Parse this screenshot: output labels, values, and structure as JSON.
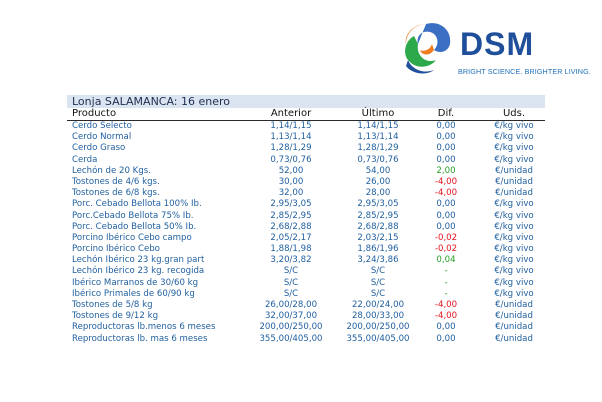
{
  "logo": {
    "name": "DSM",
    "tagline": "BRIGHT SCIENCE. BRIGHTER LIVING.",
    "colors": [
      "#3a6fc4",
      "#2da84a",
      "#f07c1f",
      "#1f4e9a"
    ]
  },
  "table": {
    "title": "Lonja SALAMANCA: 16 enero",
    "columns": {
      "producto": "Producto",
      "anterior": "Anterior",
      "ultimo": "Último",
      "dif": "Dif.",
      "uds": "Uds."
    },
    "colors": {
      "text": "#1f5f9f",
      "positive": "#2aa02a",
      "negative": "#e0141e",
      "title_bg": "#dbe5f1"
    },
    "rows": [
      {
        "producto": "Cerdo Selecto",
        "anterior": "1,14/1,15",
        "ultimo": "1,14/1,15",
        "dif": "0,00",
        "uds": "€/kg vivo",
        "trend": "zero"
      },
      {
        "producto": "Cerdo Normal",
        "anterior": "1,13/1,14",
        "ultimo": "1,13/1,14",
        "dif": "0,00",
        "uds": "€/kg vivo",
        "trend": "zero"
      },
      {
        "producto": "Cerdo Graso",
        "anterior": "1,28/1,29",
        "ultimo": "1,28/1,29",
        "dif": "0,00",
        "uds": "€/kg vivo",
        "trend": "zero"
      },
      {
        "producto": "Cerda",
        "anterior": "0,73/0,76",
        "ultimo": "0,73/0,76",
        "dif": "0,00",
        "uds": "€/kg vivo",
        "trend": "zero"
      },
      {
        "producto": "Lechón de 20 Kgs.",
        "anterior": "52,00",
        "ultimo": "54,00",
        "dif": "2,00",
        "uds": "€/unidad",
        "trend": "pos"
      },
      {
        "producto": "Tostones de 4/6 kgs.",
        "anterior": "30,00",
        "ultimo": "26,00",
        "dif": "-4,00",
        "uds": "€/unidad",
        "trend": "neg"
      },
      {
        "producto": "Tostones de 6/8 kgs.",
        "anterior": "32,00",
        "ultimo": "28,00",
        "dif": "-4,00",
        "uds": "€/unidad",
        "trend": "neg"
      },
      {
        "producto": "Porc. Cebado Bellota 100% Ib.",
        "anterior": "2,95/3,05",
        "ultimo": "2,95/3,05",
        "dif": "0,00",
        "uds": "€/kg vivo",
        "trend": "zero"
      },
      {
        "producto": "Porc.Cebado Bellota 75% Ib.",
        "anterior": "2,85/2,95",
        "ultimo": "2,85/2,95",
        "dif": "0,00",
        "uds": "€/kg vivo",
        "trend": "zero"
      },
      {
        "producto": "Porc. Cebado Bellota 50% Ib.",
        "anterior": "2,68/2,88",
        "ultimo": "2,68/2,88",
        "dif": "0,00",
        "uds": "€/kg vivo",
        "trend": "zero"
      },
      {
        "producto": "Porcino Ibérico Cebo campo",
        "anterior": "2,05/2,17",
        "ultimo": "2,03/2,15",
        "dif": "-0,02",
        "uds": "€/kg vivo",
        "trend": "neg"
      },
      {
        "producto": "Porcino Ibérico Cebo",
        "anterior": "1,88/1,98",
        "ultimo": "1,86/1,96",
        "dif": "-0,02",
        "uds": "€/kg vivo",
        "trend": "neg"
      },
      {
        "producto": "Lechón Ibérico 23 kg.gran part",
        "anterior": "3,20/3,82",
        "ultimo": "3,24/3,86",
        "dif": "0,04",
        "uds": "€/kg vivo",
        "trend": "pos"
      },
      {
        "producto": "Lechón Ibérico 23 kg. recogida",
        "anterior": "S/C",
        "ultimo": "S/C",
        "dif": "-",
        "uds": "€/kg vivo",
        "trend": "pos"
      },
      {
        "producto": "Ibérico Marranos de 30/60 kg",
        "anterior": "S/C",
        "ultimo": "S/C",
        "dif": "-",
        "uds": "€/kg vivo",
        "trend": "pos"
      },
      {
        "producto": "Ibérico Primales de 60/90 kg",
        "anterior": "S/C",
        "ultimo": "S/C",
        "dif": "-",
        "uds": "€/kg vivo",
        "trend": "pos"
      },
      {
        "producto": "Tostones de 5/8 kg",
        "anterior": "26,00/28,00",
        "ultimo": "22,00/24,00",
        "dif": "-4,00",
        "uds": "€/unidad",
        "trend": "neg"
      },
      {
        "producto": "Tostones de 9/12 kg",
        "anterior": "32,00/37,00",
        "ultimo": "28,00/33,00",
        "dif": "-4,00",
        "uds": "€/unidad",
        "trend": "neg"
      },
      {
        "producto": "Reproductoras lb.menos 6 meses",
        "anterior": "200,00/250,00",
        "ultimo": "200,00/250,00",
        "dif": "0,00",
        "uds": "€/unidad",
        "trend": "zero"
      },
      {
        "producto": "Reproductoras lb. mas 6 meses",
        "anterior": "355,00/405,00",
        "ultimo": "355,00/405,00",
        "dif": "0,00",
        "uds": "€/unidad",
        "trend": "zero"
      }
    ]
  }
}
